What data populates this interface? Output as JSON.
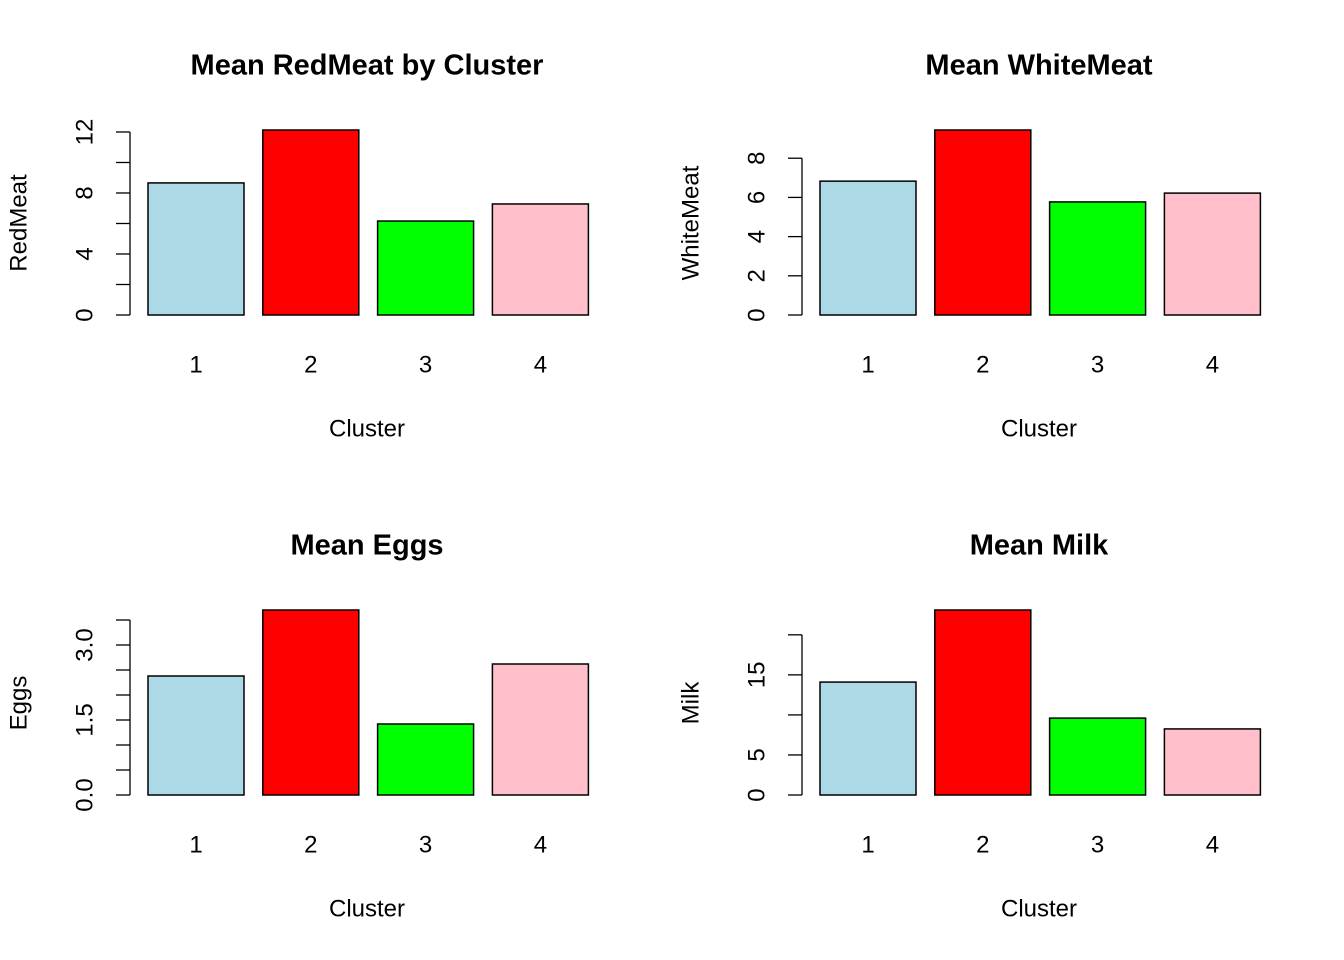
{
  "chart_data": [
    {
      "type": "bar",
      "title": "Mean RedMeat by Cluster",
      "xlabel": "Cluster",
      "ylabel": "RedMeat",
      "categories": [
        "1",
        "2",
        "3",
        "4"
      ],
      "values": [
        8.66,
        12.13,
        6.16,
        7.28
      ],
      "colors": [
        "#add8e6",
        "#ff0000",
        "#00ff00",
        "#ffc0cb"
      ],
      "ylim": [
        0,
        12.13
      ],
      "yticks": [
        0,
        4,
        8,
        12
      ],
      "yminorticks": [
        2,
        6,
        10
      ]
    },
    {
      "type": "bar",
      "title": "Mean WhiteMeat",
      "xlabel": "Cluster",
      "ylabel": "WhiteMeat",
      "categories": [
        "1",
        "2",
        "3",
        "4"
      ],
      "values": [
        6.83,
        9.44,
        5.77,
        6.22
      ],
      "colors": [
        "#add8e6",
        "#ff0000",
        "#00ff00",
        "#ffc0cb"
      ],
      "ylim": [
        0,
        9.44
      ],
      "yticks": [
        0,
        2,
        4,
        6,
        8
      ]
    },
    {
      "type": "bar",
      "title": "Mean Eggs",
      "xlabel": "Cluster",
      "ylabel": "Eggs",
      "categories": [
        "1",
        "2",
        "3",
        "4"
      ],
      "values": [
        2.38,
        3.7,
        1.42,
        2.62
      ],
      "colors": [
        "#add8e6",
        "#ff0000",
        "#00ff00",
        "#ffc0cb"
      ],
      "ylim": [
        0,
        3.7
      ],
      "yticks": [
        {
          "value": 0,
          "label": "0.0"
        },
        {
          "value": 1.5,
          "label": "1.5"
        },
        {
          "value": 3,
          "label": "3.0"
        }
      ],
      "yminorticks": [
        0.5,
        1,
        2,
        2.5,
        3.5
      ]
    },
    {
      "type": "bar",
      "title": "Mean Milk",
      "xlabel": "Cluster",
      "ylabel": "Milk",
      "categories": [
        "1",
        "2",
        "3",
        "4"
      ],
      "values": [
        14.1,
        23.1,
        9.6,
        8.25
      ],
      "colors": [
        "#add8e6",
        "#ff0000",
        "#00ff00",
        "#ffc0cb"
      ],
      "ylim": [
        0,
        23.1
      ],
      "yticks": [
        0,
        5,
        15
      ],
      "yminorticks": [
        10,
        20
      ]
    }
  ]
}
